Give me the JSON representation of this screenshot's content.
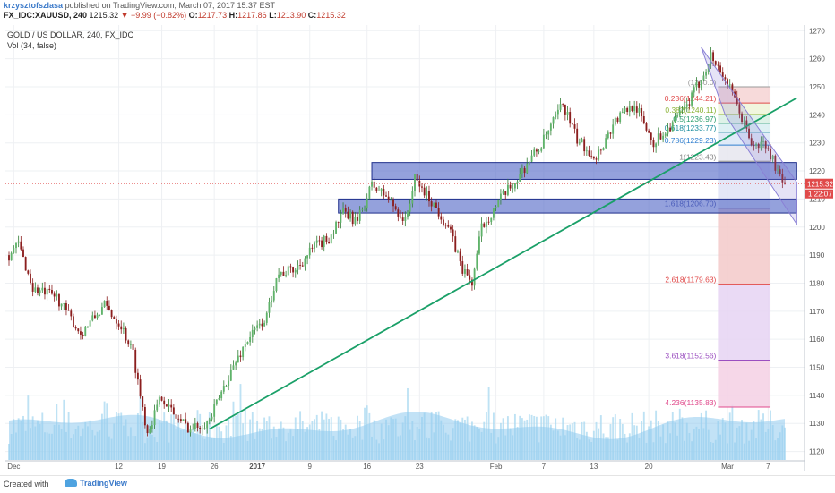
{
  "header": {
    "author": "krzysztofszlasa",
    "published_text": "published on TradingView.com, March 07, 2017 15:37 EST",
    "symbol": "FX_IDC:XAUUSD, 240",
    "last": "1215.32",
    "change": "▼ −9.99 (−0.82%)",
    "open_label": "O:",
    "open": "1217.73",
    "high_label": "H:",
    "high": "1217.86",
    "low_label": "L:",
    "low": "1213.90",
    "close_label": "C:",
    "close": "1215.32"
  },
  "legend": {
    "title": "GOLD / US DOLLAR, 240, FX_IDC",
    "indicator": "Vol (34, false)"
  },
  "footer": {
    "created": "Created with",
    "brand": "TradingView"
  },
  "colors": {
    "up": "#53b987",
    "down": "#eb4d5c",
    "candle_up": "#2e7d32",
    "candle_down": "#8b1e1e",
    "trend": "#1aa068",
    "zone_fill": "#5b6fc9",
    "zone_border": "#1f2f8c",
    "volume": "#a8d8f0",
    "volume_ma": "#8fcbef",
    "price_tag": "#e04a4a",
    "channel": "#8a80d6"
  },
  "chart_data": {
    "type": "candlestick",
    "ylim": [
      1117,
      1272
    ],
    "yticks": [
      1120,
      1130,
      1140,
      1150,
      1160,
      1170,
      1180,
      1190,
      1200,
      1210,
      1220,
      1230,
      1240,
      1250,
      1260,
      1270
    ],
    "xticks": [
      "Dec",
      "12",
      "19",
      "26",
      "2017",
      "9",
      "16",
      "23",
      "Feb",
      "7",
      "13",
      "20",
      "Mar",
      "7"
    ],
    "xtick_positions": [
      2,
      46,
      64,
      86,
      104,
      126,
      150,
      172,
      204,
      224,
      245,
      268,
      301,
      318
    ],
    "bars": 325,
    "path": [
      [
        0,
        1190
      ],
      [
        4,
        1194
      ],
      [
        10,
        1178
      ],
      [
        20,
        1175
      ],
      [
        30,
        1162
      ],
      [
        40,
        1172
      ],
      [
        47,
        1165
      ],
      [
        52,
        1155
      ],
      [
        55,
        1140
      ],
      [
        58,
        1127
      ],
      [
        64,
        1140
      ],
      [
        69,
        1133
      ],
      [
        76,
        1128
      ],
      [
        84,
        1131
      ],
      [
        92,
        1147
      ],
      [
        100,
        1160
      ],
      [
        108,
        1168
      ],
      [
        112,
        1183
      ],
      [
        120,
        1185
      ],
      [
        128,
        1193
      ],
      [
        134,
        1196
      ],
      [
        140,
        1205
      ],
      [
        146,
        1202
      ],
      [
        152,
        1215
      ],
      [
        158,
        1211
      ],
      [
        166,
        1202
      ],
      [
        170,
        1217
      ],
      [
        178,
        1208
      ],
      [
        184,
        1200
      ],
      [
        190,
        1185
      ],
      [
        194,
        1180
      ],
      [
        198,
        1200
      ],
      [
        206,
        1210
      ],
      [
        212,
        1216
      ],
      [
        218,
        1224
      ],
      [
        222,
        1228
      ],
      [
        226,
        1234
      ],
      [
        232,
        1244
      ],
      [
        238,
        1231
      ],
      [
        246,
        1225
      ],
      [
        254,
        1238
      ],
      [
        262,
        1244
      ],
      [
        270,
        1230
      ],
      [
        278,
        1237
      ],
      [
        284,
        1243
      ],
      [
        290,
        1253
      ],
      [
        294,
        1261
      ],
      [
        300,
        1253
      ],
      [
        306,
        1241
      ],
      [
        312,
        1228
      ],
      [
        316,
        1230
      ],
      [
        320,
        1224
      ],
      [
        324,
        1215
      ]
    ],
    "last_price": 1215.32,
    "price_tag_label": "1215.32",
    "secondary_tag_label": "1:22:07",
    "support_zones": [
      {
        "from_bar": 152,
        "to_bar": 330,
        "low": 1217,
        "high": 1223
      },
      {
        "from_bar": 138,
        "to_bar": 330,
        "low": 1205,
        "high": 1210
      }
    ],
    "trendline": {
      "from": [
        84,
        1128
      ],
      "to": [
        330,
        1246
      ]
    },
    "channel": {
      "upper_from": [
        290,
        1264
      ],
      "upper_to": [
        330,
        1216
      ],
      "lower_from": [
        300,
        1240
      ],
      "lower_to": [
        330,
        1201
      ]
    },
    "fibonacci": {
      "from_bar": 297,
      "to_bar": 319,
      "levels": [
        {
          "ratio": "0",
          "price": 1250.0,
          "label": "(1250.0)",
          "color": "#9a9a9a"
        },
        {
          "ratio": "0.236",
          "price": 1244.21,
          "label": "0.236(1244.21)",
          "color": "#e04a4a"
        },
        {
          "ratio": "0.382",
          "price": 1240.11,
          "label": "0.382(1240.11)",
          "color": "#8bb336"
        },
        {
          "ratio": "0.5",
          "price": 1236.97,
          "label": "0.5(1236.97)",
          "color": "#2e9e6e"
        },
        {
          "ratio": "0.618",
          "price": 1233.77,
          "label": "0.618(1233.77)",
          "color": "#1f8fa0"
        },
        {
          "ratio": "0.786",
          "price": 1229.23,
          "label": "0.786(1229.23)",
          "color": "#2f7fd0"
        },
        {
          "ratio": "1",
          "price": 1223.43,
          "label": "1(1223.43)",
          "color": "#888888"
        },
        {
          "ratio": "1.618",
          "price": 1206.7,
          "label": "1.618(1206.70)",
          "color": "#2b3b9e"
        },
        {
          "ratio": "2.618",
          "price": 1179.63,
          "label": "2.618(1179.63)",
          "color": "#e04a4a"
        },
        {
          "ratio": "3.618",
          "price": 1152.56,
          "label": "3.618(1152.56)",
          "color": "#9b4fc0"
        },
        {
          "ratio": "4.236",
          "price": 1135.83,
          "label": "4.236(1135.83)",
          "color": "#e04a8c"
        }
      ]
    }
  }
}
